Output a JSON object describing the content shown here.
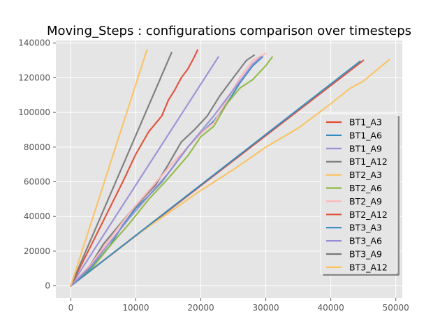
{
  "chart_data": {
    "type": "line",
    "title": "Moving_Steps : configurations comparison over timesteps",
    "xlabel": "",
    "ylabel": "",
    "xlim": [
      -2300,
      51000
    ],
    "ylim": [
      -7000,
      141500
    ],
    "xticks": [
      0,
      10000,
      20000,
      30000,
      40000,
      50000
    ],
    "xtick_labels": [
      "0",
      "10000",
      "20000",
      "30000",
      "40000",
      "50000"
    ],
    "yticks": [
      0,
      20000,
      40000,
      60000,
      80000,
      100000,
      120000,
      140000
    ],
    "ytick_labels": [
      "0",
      "20000",
      "40000",
      "60000",
      "80000",
      "100000",
      "120000",
      "140000"
    ],
    "grid": true,
    "legend_position": "bottom-right",
    "series": [
      {
        "name": "BT1_A3",
        "color": "#E24A33",
        "x": [
          0,
          45000
        ],
        "y": [
          0,
          130000
        ]
      },
      {
        "name": "BT1_A6",
        "color": "#348ABD",
        "x": [
          0,
          3000,
          6000,
          8000,
          10000,
          12000,
          14000,
          16000,
          18000,
          20000,
          22000,
          24000,
          26000,
          28000,
          29500
        ],
        "y": [
          0,
          10000,
          23000,
          35000,
          45000,
          52000,
          60000,
          70000,
          80000,
          88000,
          95000,
          105000,
          117000,
          127000,
          132000
        ]
      },
      {
        "name": "BT1_A9",
        "color": "#988ED5",
        "x": [
          0,
          22700
        ],
        "y": [
          0,
          132000
        ]
      },
      {
        "name": "BT1_A12",
        "color": "#777777",
        "x": [
          0,
          3000,
          5000,
          7000,
          9000,
          11000,
          13000,
          15000,
          17000,
          19000,
          21000,
          23000,
          25000,
          27000,
          28200
        ],
        "y": [
          0,
          12000,
          24000,
          33000,
          42000,
          50000,
          58000,
          70000,
          83000,
          90000,
          98000,
          110000,
          120000,
          130000,
          133000
        ]
      },
      {
        "name": "BT2_A3",
        "color": "#FBC15E",
        "x": [
          0,
          5000,
          10000,
          15000,
          20000,
          25000,
          30000,
          35000,
          40000,
          43000,
          45000,
          49000
        ],
        "y": [
          0,
          14500,
          29000,
          42000,
          55000,
          67000,
          80000,
          91000,
          105000,
          114000,
          118000,
          130500
        ]
      },
      {
        "name": "BT2_A6",
        "color": "#8EBA42",
        "x": [
          0,
          3000,
          6000,
          9000,
          12000,
          15000,
          18000,
          20000,
          22000,
          24000,
          26000,
          28000,
          30000,
          31000
        ],
        "y": [
          0,
          9000,
          23000,
          36000,
          50000,
          62000,
          75000,
          86000,
          92000,
          105000,
          114000,
          119000,
          127000,
          132000
        ]
      },
      {
        "name": "BT2_A9",
        "color": "#FFB5B8",
        "x": [
          0,
          3000,
          6000,
          9000,
          12000,
          15000,
          18000,
          20000,
          22000,
          24000,
          26000,
          28000,
          30000
        ],
        "y": [
          0,
          12000,
          27000,
          42000,
          55000,
          68000,
          80000,
          88000,
          94000,
          107000,
          120000,
          130000,
          134000
        ]
      },
      {
        "name": "BT2_A12",
        "color": "#E24A33",
        "x": [
          0,
          2000,
          4000,
          6000,
          8000,
          10000,
          12000,
          14000,
          15000,
          16000,
          17000,
          18000,
          19000,
          19500
        ],
        "y": [
          0,
          15000,
          30000,
          45000,
          60000,
          76000,
          89000,
          98000,
          107000,
          113000,
          120000,
          125000,
          132000,
          136000
        ]
      },
      {
        "name": "BT3_A3",
        "color": "#348ABD",
        "x": [
          0,
          44500
        ],
        "y": [
          0,
          129500
        ]
      },
      {
        "name": "BT3_A6",
        "color": "#988ED5",
        "x": [
          0,
          3000,
          6000,
          9000,
          12000,
          15000,
          18000,
          20000,
          22000,
          24000,
          26000,
          28000,
          29300
        ],
        "y": [
          0,
          11000,
          25000,
          39000,
          52000,
          65000,
          80000,
          89000,
          98000,
          108000,
          118000,
          128000,
          132000
        ]
      },
      {
        "name": "BT3_A9",
        "color": "#777777",
        "x": [
          0,
          15500
        ],
        "y": [
          0,
          134500
        ]
      },
      {
        "name": "BT3_A12",
        "color": "#FBC15E",
        "x": [
          0,
          11700
        ],
        "y": [
          0,
          136000
        ]
      }
    ]
  }
}
